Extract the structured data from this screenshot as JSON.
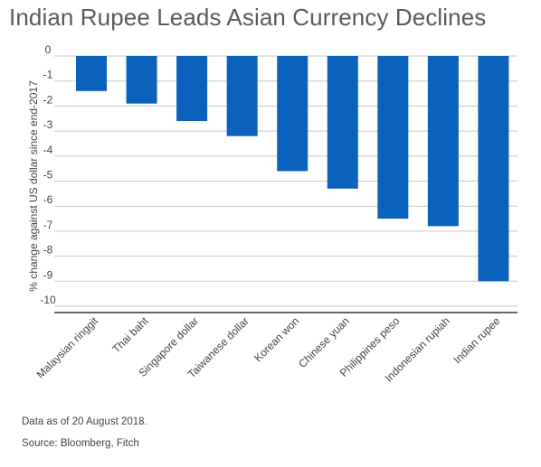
{
  "chart_data": {
    "type": "bar",
    "title": "Indian Rupee Leads Asian Currency Declines",
    "ylabel": "% change against US dollar since end-2017",
    "xlabel": "",
    "ylim": [
      -10.5,
      0
    ],
    "yticks": [
      0,
      -1,
      -2,
      -3,
      -4,
      -5,
      -6,
      -7,
      -8,
      -9,
      -10
    ],
    "categories": [
      "Malaysian ringgit",
      "Thai baht",
      "Singapore dollar",
      "Taiwanese dollar",
      "Korean won",
      "Chinese yuan",
      "Philippines peso",
      "Indonesian rupiah",
      "Indian rupee"
    ],
    "values": [
      -1.4,
      -1.9,
      -2.6,
      -3.2,
      -4.6,
      -5.3,
      -6.5,
      -6.8,
      -9.0
    ],
    "bar_color": "#0a62bd",
    "grid": true
  },
  "footnote": "Data as of 20 August 2018.",
  "source": "Source: Bloomberg, Fitch"
}
